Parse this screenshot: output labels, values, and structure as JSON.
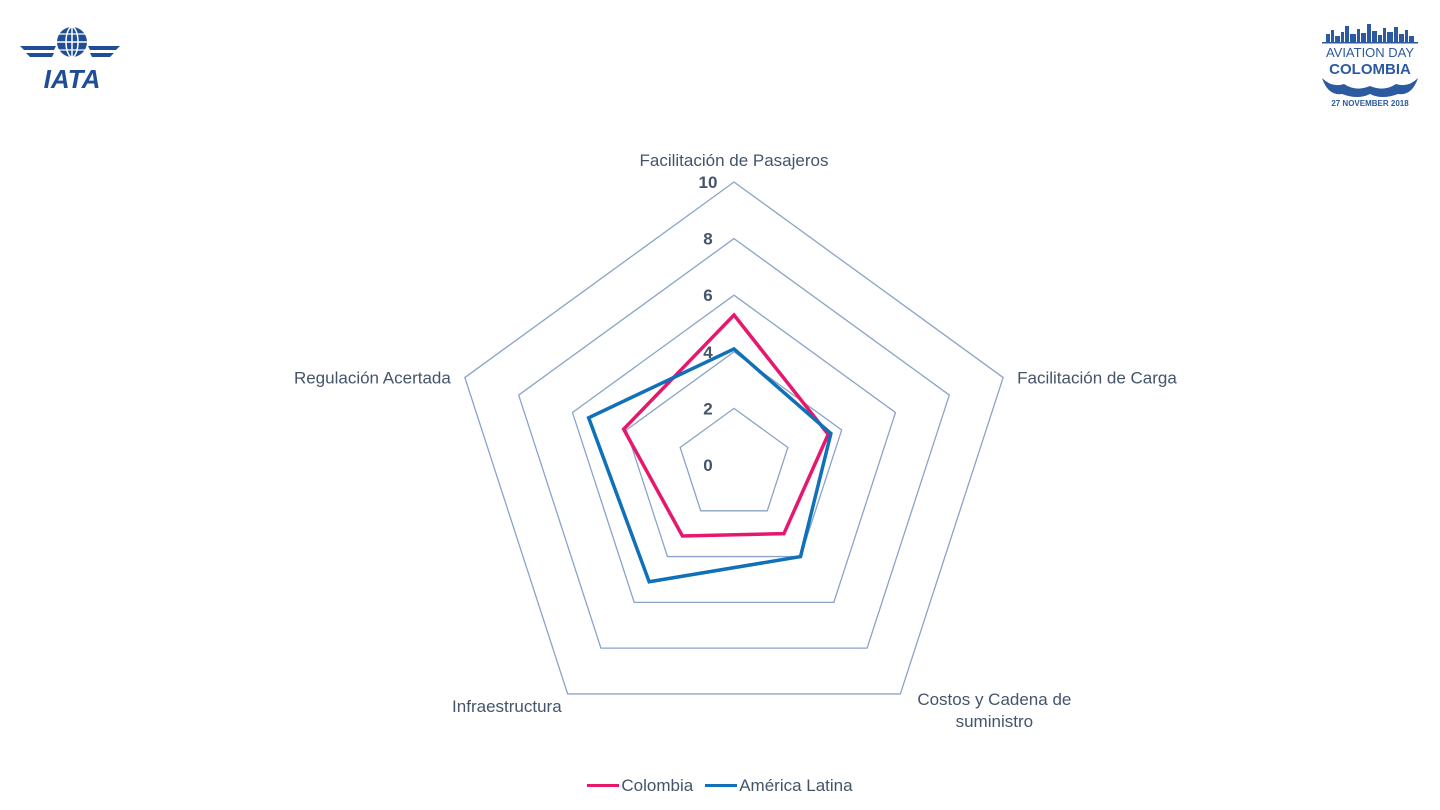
{
  "brand": {
    "left_logo_text": "IATA",
    "right_logo_line1": "AVIATION DAY",
    "right_logo_line2": "COLOMBIA",
    "right_logo_line3": "27 NOVEMBER 2018"
  },
  "colors": {
    "primary": "#1f4e97",
    "colombia": "#e6186e",
    "latam": "#1070b8",
    "grid": "#8aa3c8",
    "text": "#44546a"
  },
  "chart_data": {
    "type": "radar",
    "axes": [
      "Facilitación de Pasajeros",
      "Facilitación de Carga",
      "Costos y Cadena de suministro",
      "Infraestructura",
      "Regulación Acertada"
    ],
    "axis_label_lines": [
      [
        "Facilitación de Pasajeros"
      ],
      [
        "Facilitación de Carga"
      ],
      [
        "Costos y Cadena de",
        "suministro"
      ],
      [
        "Infraestructura"
      ],
      [
        "Regulación Acertada"
      ]
    ],
    "rlim": [
      0,
      10
    ],
    "ticks": [
      "0",
      "2",
      "4",
      "6",
      "8",
      "10"
    ],
    "tick_values": [
      0,
      2,
      4,
      6,
      8,
      10
    ],
    "grid": true,
    "legend_position": "bottom",
    "series": [
      {
        "name": "Colombia",
        "values": [
          5.3,
          3.5,
          3.0,
          3.1,
          4.1
        ]
      },
      {
        "name": "América Latina",
        "values": [
          4.1,
          3.6,
          4.0,
          5.1,
          5.4
        ]
      }
    ]
  }
}
